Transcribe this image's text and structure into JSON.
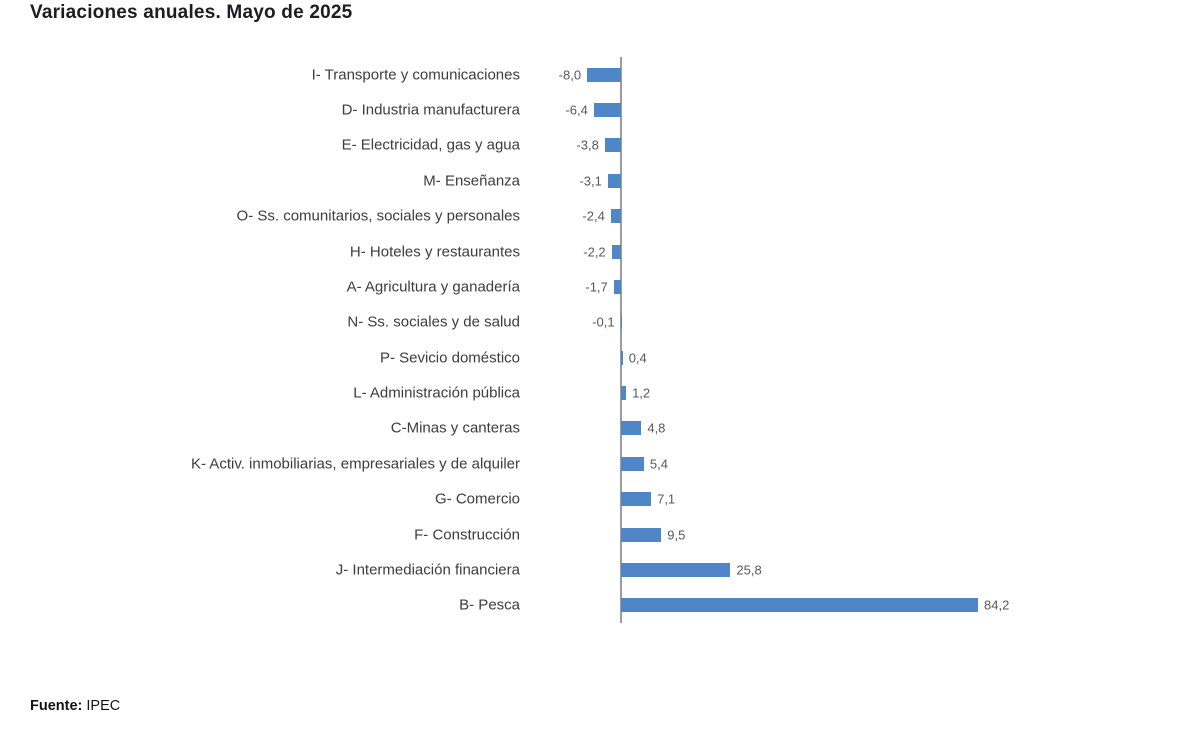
{
  "title": "Variaciones anuales. Mayo de 2025",
  "source": {
    "label": "Fuente:",
    "value": "IPEC"
  },
  "chart_data": {
    "type": "bar",
    "orientation": "horizontal",
    "title": "Variaciones anuales. Mayo de 2025",
    "xlabel": "",
    "ylabel": "",
    "grid": false,
    "legend": false,
    "categories": [
      "I- Transporte y comunicaciones",
      "D- Industria manufacturera",
      "E- Electricidad, gas y agua",
      "M- Enseñanza",
      "O- Ss. comunitarios, sociales y personales",
      "H- Hoteles y restaurantes",
      "A- Agricultura y ganadería",
      "N- Ss. sociales y de salud",
      "P- Sevicio doméstico",
      "L- Administración pública",
      "C-Minas y canteras",
      "K- Activ. inmobiliarias, empresariales y de alquiler",
      "G- Comercio",
      "F- Construcción",
      "J- Intermediación financiera",
      "B- Pesca"
    ],
    "values": [
      -8.0,
      -6.4,
      -3.8,
      -3.1,
      -2.4,
      -2.2,
      -1.7,
      -0.1,
      0.4,
      1.2,
      4.8,
      5.4,
      7.1,
      9.5,
      25.8,
      84.2
    ],
    "value_labels": [
      "-8,0",
      "-6,4",
      "-3,8",
      "-3,1",
      "-2,4",
      "-2,2",
      "-1,7",
      "-0,1",
      "0,4",
      "1,2",
      "4,8",
      "5,4",
      "7,1",
      "9,5",
      "25,8",
      "84,2"
    ],
    "bar_color": "#4f86c8",
    "axis_color": "#9c9c9c"
  }
}
